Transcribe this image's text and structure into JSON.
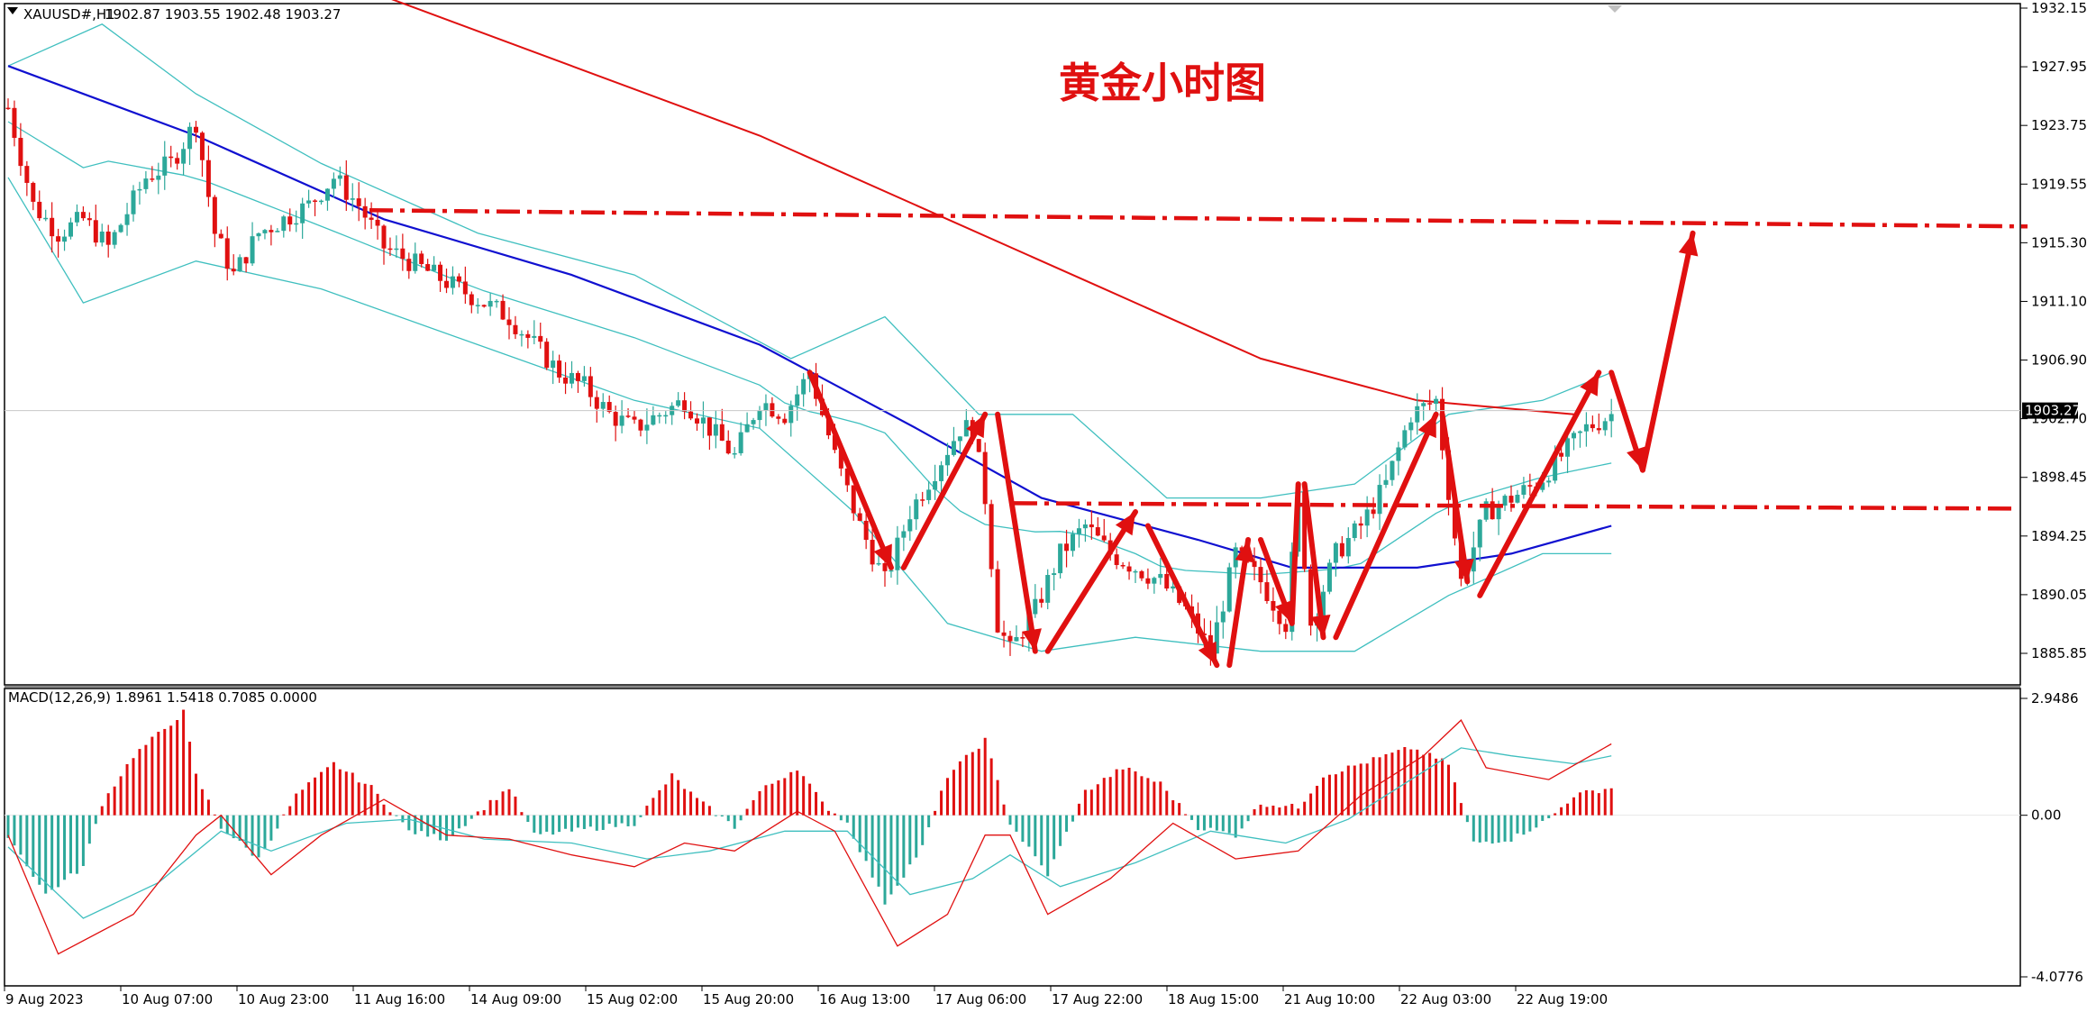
{
  "header": {
    "symbol": "XAUUSD#,H1",
    "ohlc": "1902.87 1903.55 1902.48 1903.27"
  },
  "annotation_title": "黄金小时图",
  "macd_label": "MACD(12,26,9) 1.8961 1.5418 0.7085 0.0000",
  "colors": {
    "bull": "#2ca89a",
    "bear": "#e01010",
    "ma_blue": "#1010d0",
    "ma_red": "#e01010",
    "bollinger": "#3fbfbf",
    "annotation": "#e01010",
    "price_tag_bg": "#000000"
  },
  "chart_data": [
    {
      "type": "candlestick",
      "title": "",
      "price_axis_ticks": [
        "1932.15",
        "1927.95",
        "1923.75",
        "1919.55",
        "1915.30",
        "1911.10",
        "1906.90",
        "1902.70",
        "1898.45",
        "1894.25",
        "1890.05",
        "1885.85"
      ],
      "current_price": "1903.27",
      "time_axis_ticks": [
        "9 Aug 2023",
        "10 Aug 07:00",
        "10 Aug 23:00",
        "11 Aug 16:00",
        "14 Aug 09:00",
        "15 Aug 02:00",
        "15 Aug 20:00",
        "16 Aug 13:00",
        "17 Aug 06:00",
        "17 Aug 22:00",
        "18 Aug 15:00",
        "21 Aug 10:00",
        "22 Aug 03:00",
        "22 Aug 19:00"
      ],
      "resistance_level": 1917.0,
      "support_level": 1896.3,
      "close_path": [
        [
          0,
          1925
        ],
        [
          4,
          1918
        ],
        [
          8,
          1916
        ],
        [
          12,
          1917
        ],
        [
          16,
          1915
        ],
        [
          22,
          1920
        ],
        [
          26,
          1921
        ],
        [
          30,
          1924
        ],
        [
          33,
          1916
        ],
        [
          36,
          1913
        ],
        [
          40,
          1916
        ],
        [
          44,
          1917
        ],
        [
          48,
          1918
        ],
        [
          52,
          1920
        ],
        [
          56,
          1918
        ],
        [
          60,
          1915
        ],
        [
          64,
          1914
        ],
        [
          68,
          1913
        ],
        [
          72,
          1912
        ],
        [
          76,
          1911
        ],
        [
          80,
          1910
        ],
        [
          84,
          1908
        ],
        [
          88,
          1906
        ],
        [
          92,
          1905
        ],
        [
          96,
          1903
        ],
        [
          100,
          1902
        ],
        [
          104,
          1903
        ],
        [
          108,
          1904
        ],
        [
          112,
          1902
        ],
        [
          116,
          1900
        ],
        [
          120,
          1904
        ],
        [
          124,
          1903
        ],
        [
          128,
          1906
        ],
        [
          132,
          1900
        ],
        [
          136,
          1895
        ],
        [
          140,
          1891
        ],
        [
          144,
          1896
        ],
        [
          148,
          1899
        ],
        [
          152,
          1902
        ],
        [
          154,
          1902
        ],
        [
          156,
          1897
        ],
        [
          158,
          1888
        ],
        [
          160,
          1886
        ],
        [
          164,
          1889
        ],
        [
          168,
          1893
        ],
        [
          172,
          1895
        ],
        [
          176,
          1893
        ],
        [
          180,
          1892
        ],
        [
          184,
          1891
        ],
        [
          188,
          1889
        ],
        [
          192,
          1886
        ],
        [
          196,
          1893
        ],
        [
          200,
          1891
        ],
        [
          204,
          1888
        ],
        [
          206,
          1897
        ],
        [
          208,
          1888
        ],
        [
          212,
          1893
        ],
        [
          216,
          1895
        ],
        [
          220,
          1898
        ],
        [
          224,
          1903
        ],
        [
          228,
          1904
        ],
        [
          232,
          1891
        ],
        [
          236,
          1896
        ],
        [
          240,
          1897
        ],
        [
          244,
          1898
        ],
        [
          248,
          1900
        ],
        [
          252,
          1902
        ],
        [
          256,
          1903
        ]
      ],
      "moving_average_blue": [
        [
          0,
          1928
        ],
        [
          30,
          1923
        ],
        [
          60,
          1917
        ],
        [
          90,
          1913
        ],
        [
          120,
          1908
        ],
        [
          145,
          1902
        ],
        [
          165,
          1897
        ],
        [
          190,
          1894
        ],
        [
          205,
          1892
        ],
        [
          225,
          1892
        ],
        [
          240,
          1893
        ],
        [
          256,
          1895
        ]
      ],
      "moving_average_red": [
        [
          60,
          1933
        ],
        [
          90,
          1928
        ],
        [
          120,
          1923
        ],
        [
          150,
          1917
        ],
        [
          175,
          1912
        ],
        [
          200,
          1907
        ],
        [
          225,
          1904
        ],
        [
          250,
          1903
        ]
      ],
      "bollinger_upper": [
        [
          0,
          1928
        ],
        [
          15,
          1931
        ],
        [
          30,
          1926
        ],
        [
          50,
          1921
        ],
        [
          75,
          1916
        ],
        [
          100,
          1913
        ],
        [
          125,
          1907
        ],
        [
          140,
          1910
        ],
        [
          155,
          1903
        ],
        [
          170,
          1903
        ],
        [
          185,
          1897
        ],
        [
          200,
          1897
        ],
        [
          215,
          1898
        ],
        [
          230,
          1903
        ],
        [
          245,
          1904
        ],
        [
          256,
          1906
        ]
      ],
      "bollinger_lower": [
        [
          0,
          1920
        ],
        [
          12,
          1911
        ],
        [
          30,
          1914
        ],
        [
          50,
          1912
        ],
        [
          75,
          1908
        ],
        [
          100,
          1904
        ],
        [
          120,
          1902
        ],
        [
          135,
          1896
        ],
        [
          150,
          1888
        ],
        [
          165,
          1886
        ],
        [
          180,
          1887
        ],
        [
          200,
          1886
        ],
        [
          215,
          1886
        ],
        [
          230,
          1890
        ],
        [
          245,
          1893
        ],
        [
          256,
          1893
        ]
      ],
      "annotation_zigzag": [
        [
          128,
          1906
        ],
        [
          141,
          1892
        ],
        [
          143,
          1892
        ],
        [
          156,
          1903
        ],
        [
          158,
          1903
        ],
        [
          164,
          1886
        ],
        [
          166,
          1886
        ],
        [
          180,
          1896
        ],
        [
          182,
          1895
        ],
        [
          193,
          1885
        ],
        [
          195,
          1885
        ],
        [
          198,
          1894
        ],
        [
          200,
          1894
        ],
        [
          205,
          1888
        ],
        [
          206,
          1898
        ],
        [
          207,
          1898
        ],
        [
          210,
          1887
        ],
        [
          212,
          1887
        ],
        [
          228,
          1903
        ],
        [
          229,
          1903
        ],
        [
          233,
          1891
        ],
        [
          235,
          1890
        ],
        [
          254,
          1906
        ],
        [
          256,
          1906
        ],
        [
          261,
          1899
        ]
      ],
      "annotation_target_arrow": [
        [
          261,
          1899
        ],
        [
          269,
          1916
        ]
      ],
      "annotation_arrowheads": [
        141,
        156,
        164,
        180,
        193,
        198,
        205,
        207,
        210,
        228,
        233,
        254,
        261,
        269
      ]
    },
    {
      "type": "macd",
      "title": "",
      "axis_ticks": [
        "2.9486",
        "0.00",
        "-4.0776"
      ],
      "ylim": [
        -4.0776,
        2.9486
      ],
      "histogram": [
        [
          0,
          -0.5
        ],
        [
          6,
          -2.0
        ],
        [
          12,
          -1.3
        ],
        [
          15,
          0.3
        ],
        [
          20,
          1.5
        ],
        [
          28,
          2.6
        ],
        [
          30,
          1.0
        ],
        [
          34,
          -0.3
        ],
        [
          40,
          -1.1
        ],
        [
          46,
          0.5
        ],
        [
          52,
          1.3
        ],
        [
          58,
          0.7
        ],
        [
          64,
          -0.4
        ],
        [
          70,
          -0.6
        ],
        [
          76,
          0.2
        ],
        [
          80,
          0.7
        ],
        [
          84,
          -0.5
        ],
        [
          90,
          -0.4
        ],
        [
          100,
          -0.2
        ],
        [
          106,
          1.0
        ],
        [
          110,
          0.4
        ],
        [
          116,
          -0.3
        ],
        [
          120,
          0.6
        ],
        [
          126,
          1.2
        ],
        [
          130,
          0.3
        ],
        [
          134,
          -0.2
        ],
        [
          140,
          -2.2
        ],
        [
          146,
          -0.8
        ],
        [
          150,
          1.0
        ],
        [
          156,
          1.9
        ],
        [
          160,
          -0.2
        ],
        [
          166,
          -1.5
        ],
        [
          172,
          0.6
        ],
        [
          178,
          1.2
        ],
        [
          184,
          0.8
        ],
        [
          190,
          -0.3
        ],
        [
          196,
          -0.5
        ],
        [
          200,
          0.3
        ],
        [
          206,
          0.2
        ],
        [
          210,
          1.0
        ],
        [
          216,
          1.3
        ],
        [
          224,
          1.7
        ],
        [
          230,
          1.3
        ],
        [
          234,
          -0.7
        ],
        [
          240,
          -0.6
        ],
        [
          246,
          -0.1
        ],
        [
          250,
          0.5
        ],
        [
          256,
          0.7
        ]
      ],
      "macd_line": [
        [
          0,
          -0.5
        ],
        [
          8,
          -3.5
        ],
        [
          20,
          -2.5
        ],
        [
          30,
          -0.5
        ],
        [
          34,
          0.0
        ],
        [
          42,
          -1.5
        ],
        [
          50,
          -0.5
        ],
        [
          60,
          0.4
        ],
        [
          70,
          -0.5
        ],
        [
          80,
          -0.6
        ],
        [
          90,
          -1.0
        ],
        [
          100,
          -1.3
        ],
        [
          108,
          -0.7
        ],
        [
          116,
          -0.9
        ],
        [
          126,
          0.1
        ],
        [
          132,
          -0.4
        ],
        [
          142,
          -3.3
        ],
        [
          150,
          -2.5
        ],
        [
          156,
          -0.5
        ],
        [
          160,
          -0.5
        ],
        [
          166,
          -2.5
        ],
        [
          176,
          -1.6
        ],
        [
          186,
          -0.2
        ],
        [
          196,
          -1.1
        ],
        [
          206,
          -0.9
        ],
        [
          216,
          0.5
        ],
        [
          226,
          1.5
        ],
        [
          232,
          2.4
        ],
        [
          236,
          1.2
        ],
        [
          246,
          0.9
        ],
        [
          256,
          1.8
        ]
      ],
      "signal_line": [
        [
          0,
          -0.8
        ],
        [
          12,
          -2.6
        ],
        [
          24,
          -1.7
        ],
        [
          34,
          -0.4
        ],
        [
          42,
          -0.9
        ],
        [
          54,
          -0.2
        ],
        [
          64,
          -0.1
        ],
        [
          76,
          -0.6
        ],
        [
          90,
          -0.7
        ],
        [
          102,
          -1.1
        ],
        [
          112,
          -0.9
        ],
        [
          124,
          -0.4
        ],
        [
          134,
          -0.4
        ],
        [
          144,
          -2.0
        ],
        [
          154,
          -1.6
        ],
        [
          160,
          -1.0
        ],
        [
          168,
          -1.8
        ],
        [
          180,
          -1.2
        ],
        [
          192,
          -0.4
        ],
        [
          204,
          -0.7
        ],
        [
          214,
          -0.1
        ],
        [
          224,
          0.9
        ],
        [
          232,
          1.7
        ],
        [
          240,
          1.5
        ],
        [
          250,
          1.3
        ],
        [
          256,
          1.5
        ]
      ]
    }
  ]
}
